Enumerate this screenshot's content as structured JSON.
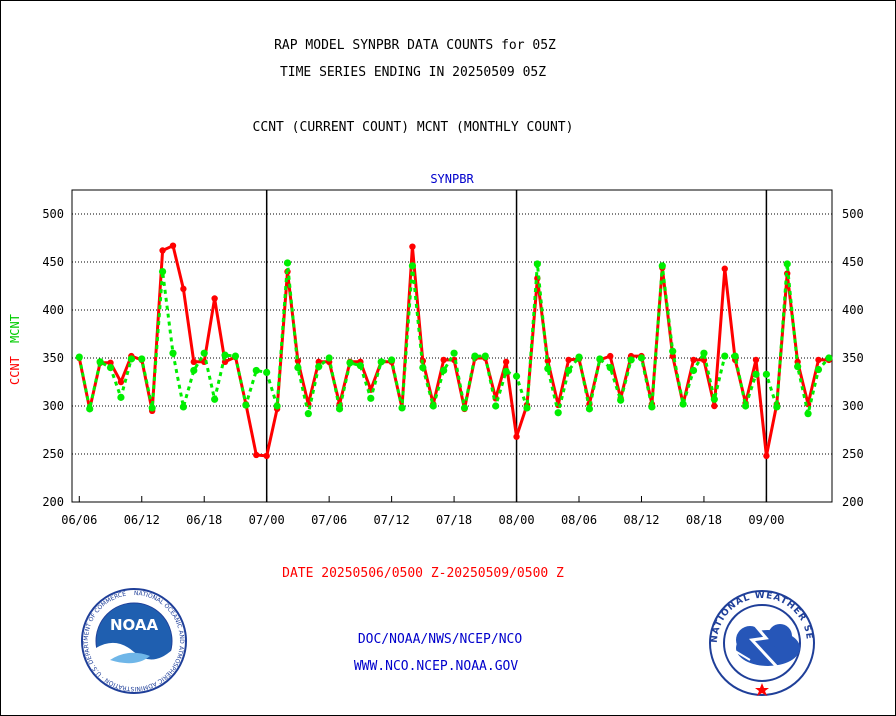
{
  "header": {
    "title_line1": "RAP MODEL SYNPBR DATA COUNTS for 05Z",
    "title_line2": "TIME SERIES ENDING IN 20250509 05Z",
    "title_line3": "CCNT (CURRENT COUNT) MCNT (MONTHLY COUNT)"
  },
  "footer": {
    "date_range": "DATE 20250506/0500 Z-20250509/0500 Z",
    "link1": "DOC/NOAA/NWS/NCEP/NCO",
    "link2": "WWW.NCO.NCEP.NOAA.GOV",
    "noaa_logo_text": "NOAA",
    "noaa_ring_text": "NATIONAL OCEANIC AND ATMOSPHERIC ADMINISTRATION · U.S. DEPARTMENT OF COMMERCE",
    "nws_ring_text": "NATIONAL WEATHER SERVICE"
  },
  "colors": {
    "ccnt": "#ff0000",
    "mcnt": "#00ee00",
    "panel_title": "#0000cc",
    "links": "#0000cc",
    "date_range": "#ff0000"
  },
  "chart_data": {
    "type": "line",
    "panel_title": "SYNPBR",
    "ylabel_ccnt": "CCNT",
    "ylabel_mcnt": "MCNT",
    "ylim": [
      200,
      525
    ],
    "yticks": [
      200,
      250,
      300,
      350,
      400,
      450,
      500
    ],
    "xlim": [
      -0.7,
      72.3
    ],
    "xticks": [
      {
        "x": 0,
        "label": "06/06"
      },
      {
        "x": 6,
        "label": "06/12"
      },
      {
        "x": 12,
        "label": "06/18"
      },
      {
        "x": 18,
        "label": "07/00"
      },
      {
        "x": 24,
        "label": "07/06"
      },
      {
        "x": 30,
        "label": "07/12"
      },
      {
        "x": 36,
        "label": "07/18"
      },
      {
        "x": 42,
        "label": "08/00"
      },
      {
        "x": 48,
        "label": "08/06"
      },
      {
        "x": 54,
        "label": "08/12"
      },
      {
        "x": 60,
        "label": "08/18"
      },
      {
        "x": 66,
        "label": "09/00"
      }
    ],
    "day_boundaries": [
      18,
      42,
      66
    ],
    "grid": true,
    "series": [
      {
        "name": "CCNT",
        "values": [
          350,
          297,
          345,
          345,
          325,
          352,
          348,
          295,
          462,
          467,
          422,
          346,
          346,
          412,
          346,
          351,
          302,
          249,
          248,
          297,
          440,
          347,
          302,
          346,
          346,
          302,
          346,
          346,
          317,
          346,
          346,
          298,
          466,
          347,
          302,
          348,
          348,
          297,
          350,
          350,
          308,
          346,
          268,
          301,
          433,
          347,
          301,
          348,
          349,
          302,
          348,
          352,
          308,
          352,
          352,
          302,
          444,
          352,
          302,
          348,
          348,
          300,
          443,
          348,
          303,
          348,
          248,
          302,
          438,
          346,
          302,
          348,
          348
        ]
      },
      {
        "name": "MCNT",
        "values": [
          351,
          297,
          346,
          340,
          309,
          349,
          349,
          298,
          440,
          355,
          299,
          337,
          355,
          307,
          353,
          352,
          301,
          337,
          335,
          300,
          449,
          340,
          292,
          341,
          350,
          297,
          345,
          342,
          308,
          346,
          348,
          298,
          446,
          340,
          300,
          337,
          355,
          298,
          352,
          352,
          300,
          336,
          331,
          298,
          448,
          339,
          293,
          337,
          351,
          297,
          349,
          340,
          306,
          348,
          350,
          299,
          446,
          357,
          302,
          337,
          355,
          307,
          352,
          352,
          300,
          333,
          333,
          299,
          448,
          341,
          292,
          338,
          350
        ]
      }
    ]
  }
}
